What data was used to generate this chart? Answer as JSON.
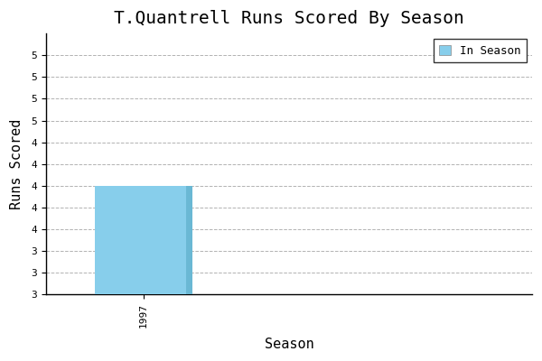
{
  "title": "T.Quantrell Runs Scored By Season",
  "xlabel": "Season",
  "ylabel": "Runs Scored",
  "season": 1997,
  "value": 4,
  "bar_color": "#87CEEB",
  "ylim_min": 3.0,
  "ylim_max": 5.4,
  "ytick_values": [
    3.0,
    3.2,
    3.4,
    3.6,
    3.8,
    4.0,
    4.2,
    4.4,
    4.6,
    4.8,
    5.0,
    5.2
  ],
  "ytick_labels": [
    "3",
    "3",
    "3",
    "4",
    "4",
    "4",
    "4",
    "4",
    "5",
    "5",
    "5",
    "5"
  ],
  "xlim_min": 1995,
  "xlim_max": 2005,
  "bar_width": 2.0,
  "legend_label": "In Season",
  "bg_color": "#ffffff",
  "grid_color": "#aaaaaa",
  "title_fontsize": 14,
  "label_fontsize": 11,
  "tick_fontsize": 8,
  "legend_fontsize": 9
}
